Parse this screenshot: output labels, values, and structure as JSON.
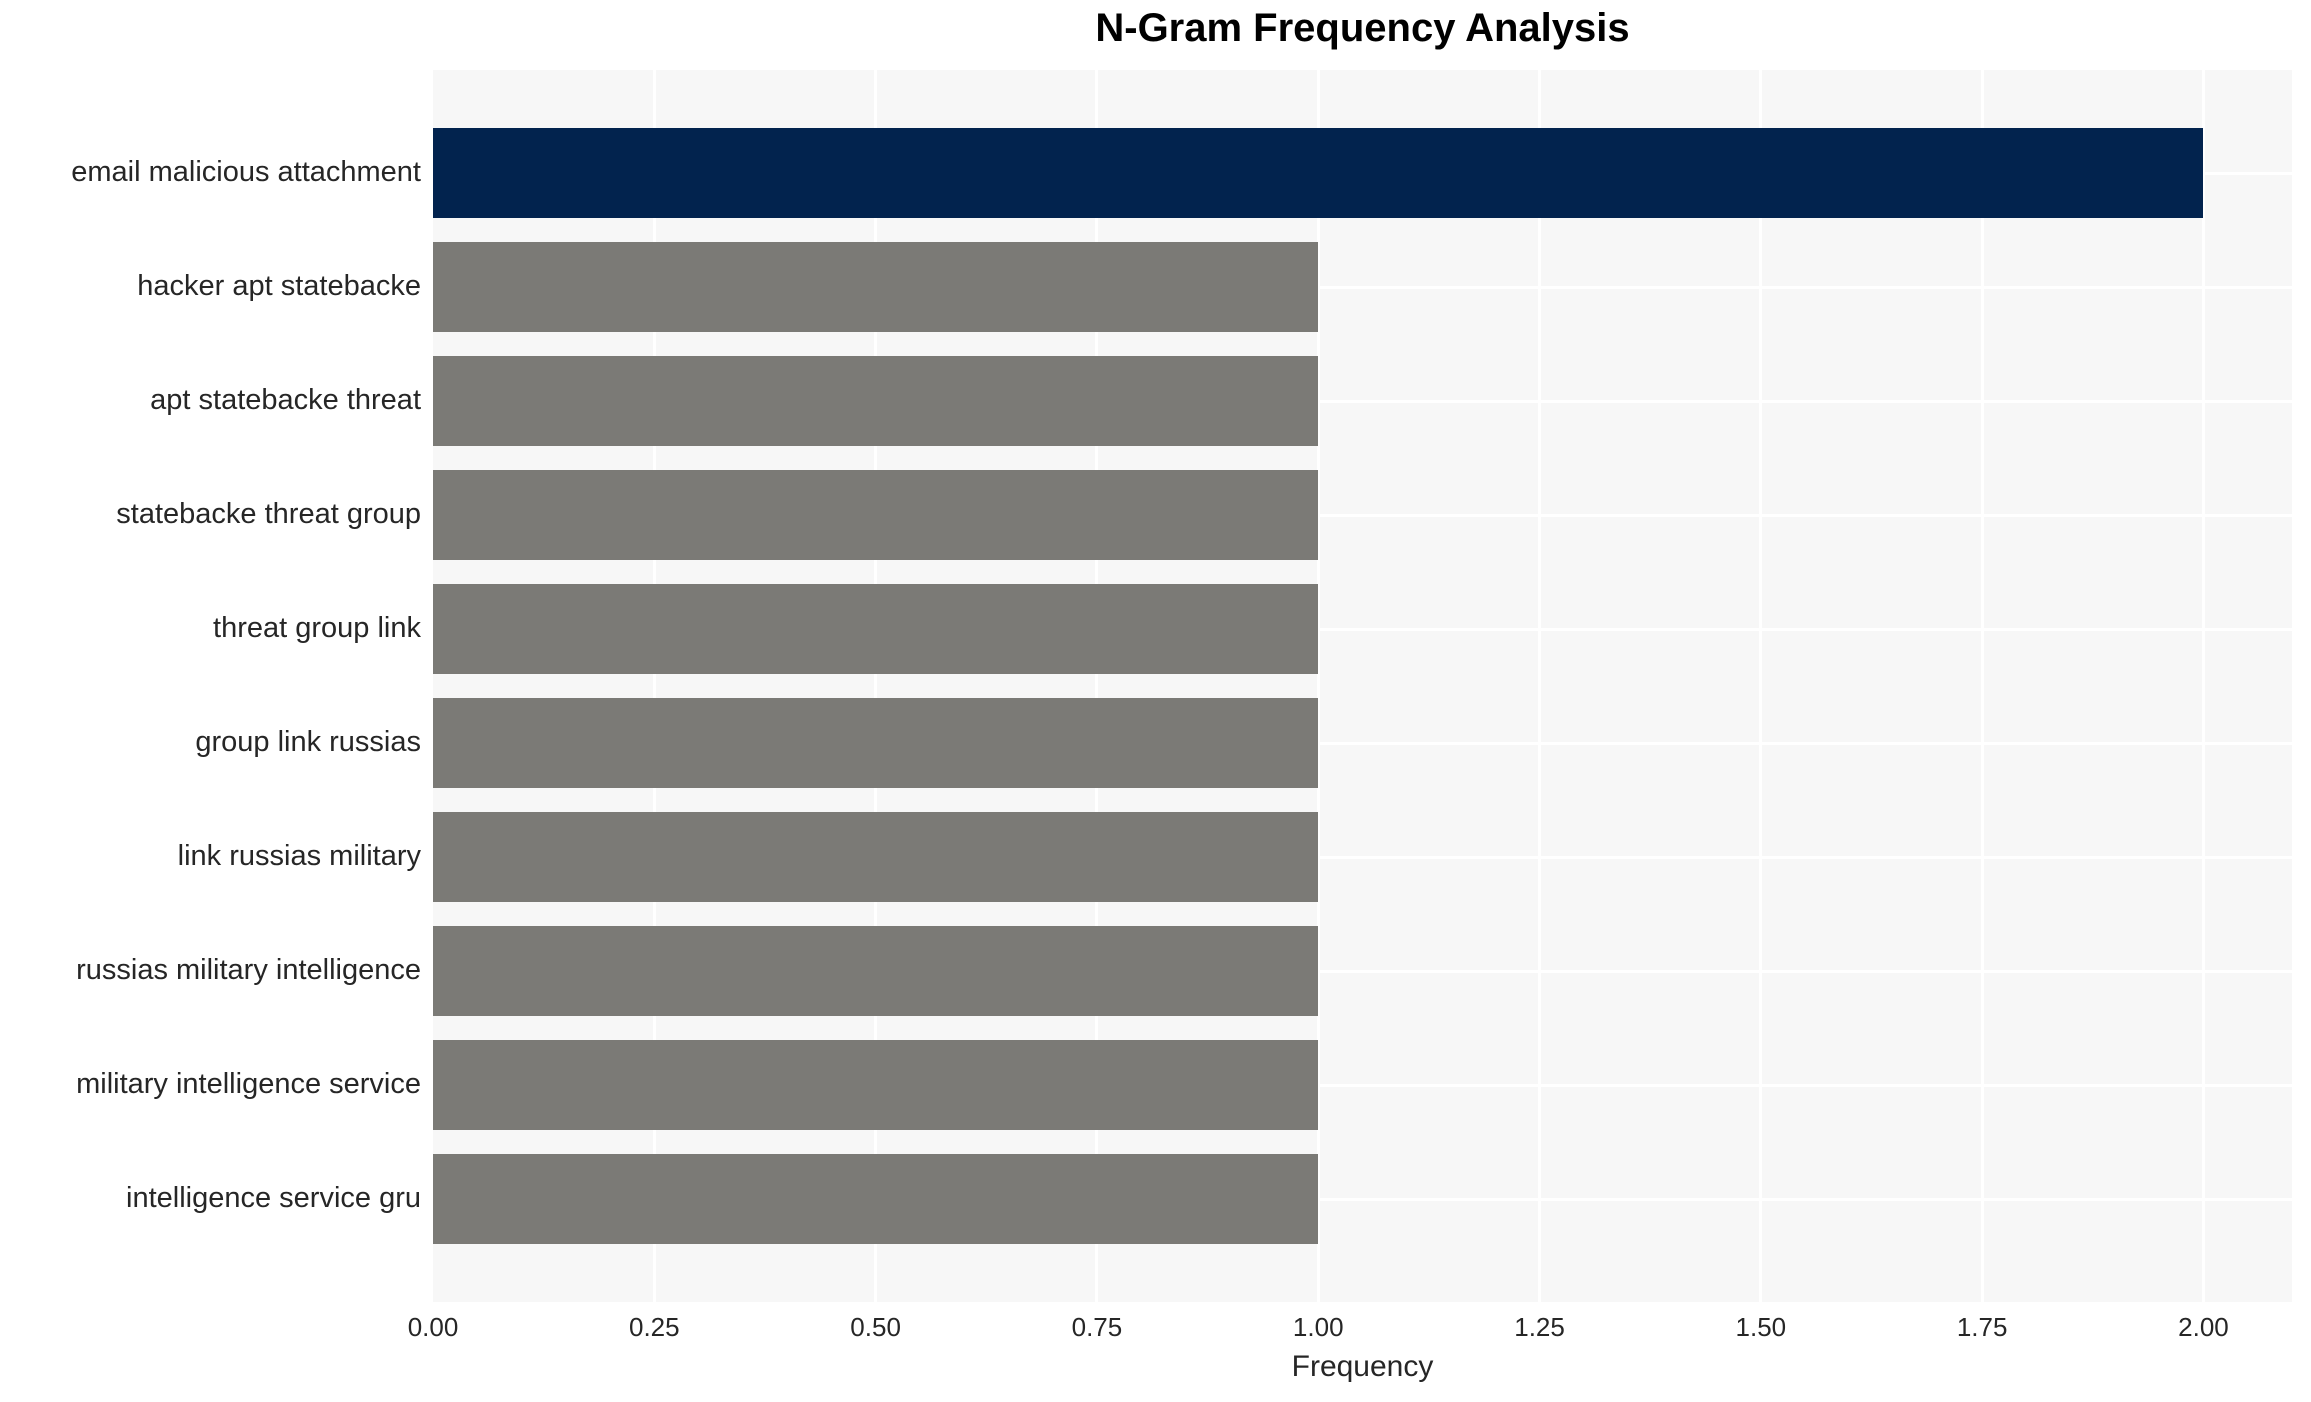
{
  "chart_data": {
    "type": "bar",
    "orientation": "horizontal",
    "title": "N-Gram Frequency Analysis",
    "xlabel": "Frequency",
    "ylabel": "",
    "categories": [
      "email malicious attachment",
      "hacker apt statebacke",
      "apt statebacke threat",
      "statebacke threat group",
      "threat group link",
      "group link russias",
      "link russias military",
      "russias military intelligence",
      "military intelligence service",
      "intelligence service gru"
    ],
    "values": [
      2,
      1,
      1,
      1,
      1,
      1,
      1,
      1,
      1,
      1
    ],
    "xticks": [
      "0.00",
      "0.25",
      "0.50",
      "0.75",
      "1.00",
      "1.25",
      "1.50",
      "1.75",
      "2.00"
    ],
    "xtick_values": [
      0,
      0.25,
      0.5,
      0.75,
      1.0,
      1.25,
      1.5,
      1.75,
      2.0
    ],
    "xlim": [
      0,
      2.1
    ],
    "grid": true,
    "legend": "none",
    "colors": {
      "highlight_bar": "#02234e",
      "default_bar": "#7b7a76",
      "plot_background": "#f7f7f7",
      "grid_line": "#ffffff",
      "tick_text": "#262626",
      "title_text": "#000000",
      "figure_background": "#ffffff"
    }
  }
}
